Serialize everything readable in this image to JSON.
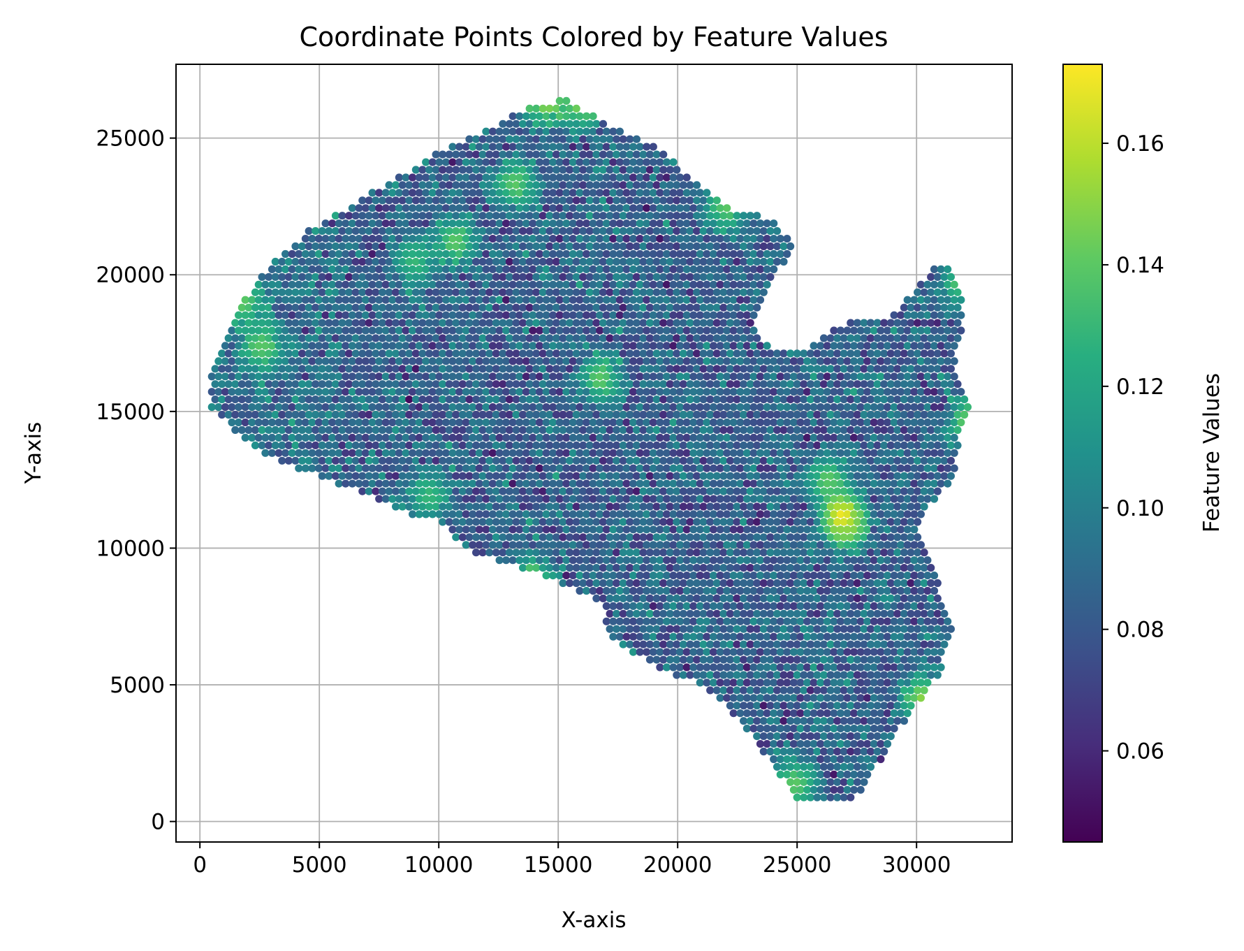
{
  "chart_data": {
    "type": "scatter",
    "title": "Coordinate Points Colored by Feature Values",
    "xlabel": "X-axis",
    "ylabel": "Y-axis",
    "xlim": [
      -1000,
      34000
    ],
    "ylim": [
      -750,
      27700
    ],
    "x_ticks": [
      0,
      5000,
      10000,
      15000,
      20000,
      25000,
      30000
    ],
    "y_ticks": [
      0,
      5000,
      10000,
      15000,
      20000,
      25000
    ],
    "grid": true,
    "colormap": "viridis",
    "colorbar": {
      "label": "Feature Values",
      "range": [
        0.045,
        0.173
      ],
      "ticks": [
        0.06,
        0.08,
        0.1,
        0.12,
        0.14,
        0.16
      ],
      "tick_labels": [
        "0.06",
        "0.08",
        "0.10",
        "0.12",
        "0.14",
        "0.16"
      ]
    },
    "point_spacing": 280,
    "typical_value": 0.085,
    "value_spread": 0.012,
    "region_outline": [
      [
        500,
        15000
      ],
      [
        500,
        16800
      ],
      [
        1200,
        18000
      ],
      [
        2000,
        19300
      ],
      [
        3000,
        20400
      ],
      [
        4500,
        21600
      ],
      [
        7000,
        22900
      ],
      [
        10000,
        24500
      ],
      [
        12000,
        25300
      ],
      [
        14000,
        26300
      ],
      [
        15500,
        26400
      ],
      [
        17000,
        25500
      ],
      [
        19000,
        24700
      ],
      [
        21000,
        23300
      ],
      [
        22000,
        22500
      ],
      [
        24000,
        22000
      ],
      [
        25000,
        20900
      ],
      [
        24500,
        20400
      ],
      [
        24000,
        19900
      ],
      [
        23500,
        19000
      ],
      [
        23000,
        18100
      ],
      [
        24000,
        17400
      ],
      [
        25500,
        17400
      ],
      [
        26500,
        18000
      ],
      [
        27500,
        18400
      ],
      [
        29000,
        18500
      ],
      [
        30000,
        19500
      ],
      [
        30800,
        20500
      ],
      [
        31500,
        20300
      ],
      [
        32000,
        19300
      ],
      [
        32000,
        17800
      ],
      [
        31500,
        17200
      ],
      [
        32200,
        15000
      ],
      [
        31800,
        14000
      ],
      [
        31500,
        12500
      ],
      [
        30500,
        11500
      ],
      [
        30000,
        10700
      ],
      [
        30500,
        9800
      ],
      [
        31000,
        8500
      ],
      [
        31500,
        7000
      ],
      [
        31000,
        5500
      ],
      [
        30200,
        4500
      ],
      [
        29000,
        3000
      ],
      [
        28200,
        1800
      ],
      [
        27500,
        900
      ],
      [
        26000,
        600
      ],
      [
        25000,
        800
      ],
      [
        24000,
        2000
      ],
      [
        22500,
        3800
      ],
      [
        21000,
        5000
      ],
      [
        19500,
        5500
      ],
      [
        18000,
        6200
      ],
      [
        17000,
        7000
      ],
      [
        17000,
        8000
      ],
      [
        15000,
        8800
      ],
      [
        13000,
        9400
      ],
      [
        11000,
        10000
      ],
      [
        10000,
        11000
      ],
      [
        9000,
        11200
      ],
      [
        7000,
        12000
      ],
      [
        5000,
        12600
      ],
      [
        3000,
        13300
      ],
      [
        1500,
        14300
      ],
      [
        500,
        15000
      ]
    ],
    "hotspots": [
      {
        "x": 9000,
        "y": 20500,
        "value": 0.13
      },
      {
        "x": 16800,
        "y": 16200,
        "value": 0.14
      },
      {
        "x": 13200,
        "y": 23300,
        "value": 0.14
      },
      {
        "x": 10700,
        "y": 21200,
        "value": 0.14
      },
      {
        "x": 26900,
        "y": 11200,
        "value": 0.17
      },
      {
        "x": 27100,
        "y": 10800,
        "value": 0.15
      },
      {
        "x": 26300,
        "y": 12500,
        "value": 0.14
      },
      {
        "x": 9600,
        "y": 11900,
        "value": 0.13
      },
      {
        "x": 2600,
        "y": 17400,
        "value": 0.14
      },
      {
        "x": 1800,
        "y": 19000,
        "value": 0.14
      },
      {
        "x": 14500,
        "y": 26300,
        "value": 0.15
      },
      {
        "x": 16000,
        "y": 26300,
        "value": 0.15
      },
      {
        "x": 13900,
        "y": 8700,
        "value": 0.15
      },
      {
        "x": 30300,
        "y": 4500,
        "value": 0.15
      },
      {
        "x": 32300,
        "y": 14600,
        "value": 0.15
      },
      {
        "x": 32000,
        "y": 19700,
        "value": 0.14
      },
      {
        "x": 22000,
        "y": 22500,
        "value": 0.14
      },
      {
        "x": 24900,
        "y": 1400,
        "value": 0.14
      }
    ]
  }
}
